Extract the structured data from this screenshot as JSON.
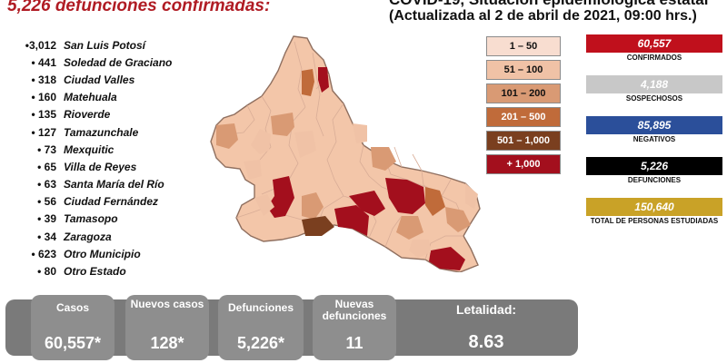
{
  "header": {
    "title": "5,226 defunciones confirmadas:",
    "top_partial": "COVID-19, Situación epidemiológica estatal",
    "updated": "(Actualizada al 2 de abril de 2021, 09:00 hrs.)"
  },
  "deaths_by_municipality": [
    {
      "count": "•3,012",
      "name": "San Luis Potosí"
    },
    {
      "count": "• 441",
      "name": "Soledad de Graciano"
    },
    {
      "count": "• 318",
      "name": "Ciudad Valles"
    },
    {
      "count": "• 160",
      "name": "Matehuala"
    },
    {
      "count": "• 135",
      "name": "Rioverde"
    },
    {
      "count": "• 127",
      "name": "Tamazunchale"
    },
    {
      "count": "• 73",
      "name": "Mexquitic"
    },
    {
      "count": "• 65",
      "name": "Villa de Reyes"
    },
    {
      "count": "• 63",
      "name": "Santa María del Río"
    },
    {
      "count": "• 56",
      "name": "Ciudad Fernández"
    },
    {
      "count": "• 39",
      "name": "Tamasopo"
    },
    {
      "count": "• 34",
      "name": "Zaragoza"
    },
    {
      "count": "• 623",
      "name": "Otro Municipio"
    },
    {
      "count": "• 80",
      "name": "Otro Estado"
    }
  ],
  "legend": [
    {
      "label": "1 – 50",
      "color": "#f8ddd0",
      "text_color": "#111111"
    },
    {
      "label": "51 – 100",
      "color": "#f0c2a6",
      "text_color": "#111111"
    },
    {
      "label": "101 – 200",
      "color": "#d99a74",
      "text_color": "#111111"
    },
    {
      "label": "201 – 500",
      "color": "#c06b3a",
      "text_color": "#ffffff"
    },
    {
      "label": "501 – 1,000",
      "color": "#7a3f1f",
      "text_color": "#ffffff"
    },
    {
      "label": "+ 1,000",
      "color": "#a30f1d",
      "text_color": "#ffffff"
    }
  ],
  "stats": [
    {
      "value": "60,557",
      "label": "CONFIRMADOS",
      "color": "#c0101c"
    },
    {
      "value": "4,188",
      "label": "SOSPECHOSOS",
      "color": "#c8c8c8"
    },
    {
      "value": "85,895",
      "label": "NEGATIVOS",
      "color": "#2b4f9a"
    },
    {
      "value": "5,226",
      "label": "DEFUNCIONES",
      "color": "#000000"
    },
    {
      "value": "150,640",
      "label": "TOTAL DE PERSONAS ESTUDIADAS",
      "color": "#c9a227"
    }
  ],
  "summary": {
    "casos_label": "Casos",
    "casos_value": "60,557*",
    "nuevos_label": "Nuevos casos",
    "nuevos_value": "128*",
    "def_label": "Defunciones",
    "def_value": "5,226*",
    "nuevas_def_label": "Nuevas defunciones",
    "nuevas_def_value": "11",
    "letalidad_label": "Letalidad:",
    "letalidad_value": "8.63"
  }
}
